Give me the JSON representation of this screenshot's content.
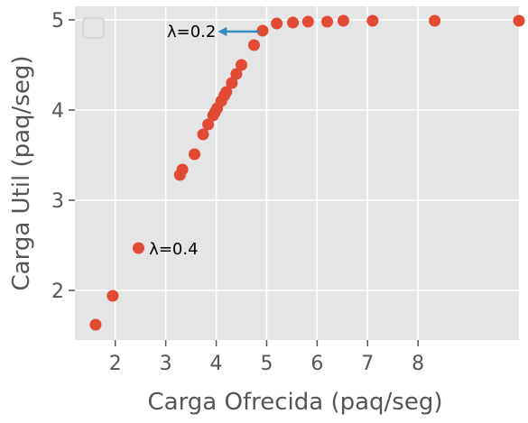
{
  "chart_data": {
    "type": "scatter",
    "xlabel": "Carga Ofrecida (paq/seg)",
    "ylabel": "Carga Util (paq/seg)",
    "xlim": [
      1.2,
      10.0
    ],
    "ylim": [
      1.45,
      5.15
    ],
    "xticks": [
      2,
      3,
      4,
      5,
      6,
      7,
      8
    ],
    "yticks": [
      2,
      3,
      4,
      5
    ],
    "grid": true,
    "legend": {
      "placement": "upper-left",
      "entries": []
    },
    "colors": {
      "background": "#e5e5e5",
      "grid": "#ffffff",
      "marker": "#e24a33",
      "arrow": "#348abd",
      "tick_text": "#555555"
    },
    "series": [
      {
        "points": [
          [
            1.61,
            1.62
          ],
          [
            1.95,
            1.94
          ],
          [
            2.46,
            2.47
          ],
          [
            3.28,
            3.28
          ],
          [
            3.33,
            3.34
          ],
          [
            3.57,
            3.51
          ],
          [
            3.74,
            3.73
          ],
          [
            3.84,
            3.84
          ],
          [
            3.94,
            3.94
          ],
          [
            3.98,
            3.98
          ],
          [
            4.02,
            4.02
          ],
          [
            4.1,
            4.1
          ],
          [
            4.16,
            4.16
          ],
          [
            4.2,
            4.2
          ],
          [
            4.31,
            4.3
          ],
          [
            4.4,
            4.4
          ],
          [
            4.5,
            4.5
          ],
          [
            4.75,
            4.72
          ],
          [
            4.92,
            4.88
          ],
          [
            5.2,
            4.96
          ],
          [
            5.52,
            4.97
          ],
          [
            5.82,
            4.98
          ],
          [
            6.2,
            4.98
          ],
          [
            6.52,
            4.99
          ],
          [
            7.1,
            4.99
          ],
          [
            8.33,
            4.99
          ],
          [
            10.0,
            4.99
          ]
        ]
      }
    ],
    "annotations": [
      {
        "text": "λ=0.2",
        "point": [
          4.05,
          4.87
        ],
        "arrow_from": [
          4.85,
          4.87
        ],
        "arrow": true
      },
      {
        "text": "λ=0.4",
        "point": [
          2.67,
          2.47
        ],
        "arrow": false
      }
    ]
  }
}
